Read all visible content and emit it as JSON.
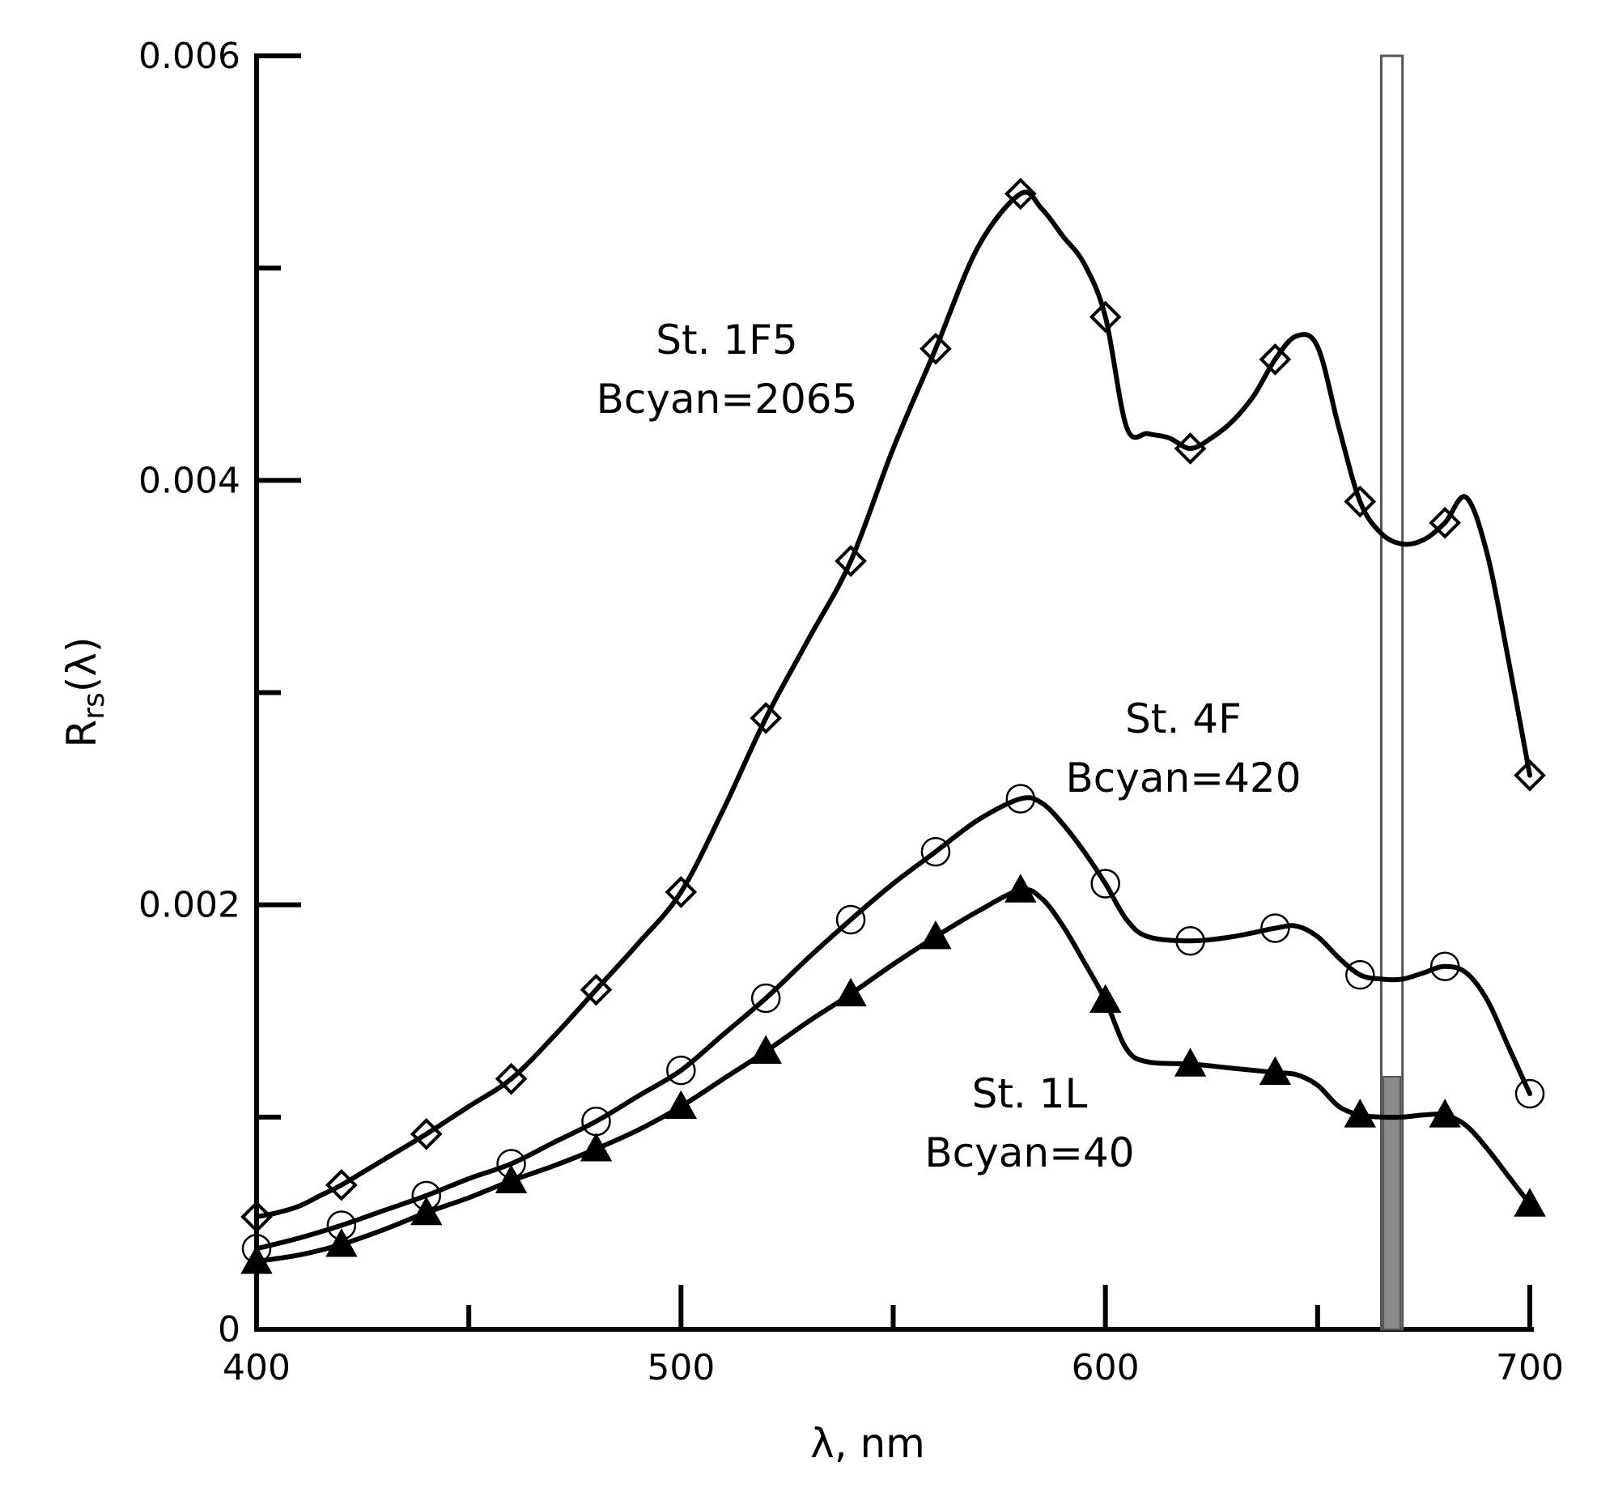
{
  "chart_data": {
    "type": "line",
    "title": "",
    "xlabel": "λ, nm",
    "ylabel": "Rrs(λ)",
    "ylabel_main": "R",
    "ylabel_sub": "rs",
    "ylabel_rest": "(λ)",
    "xlim": [
      400,
      700
    ],
    "ylim": [
      0,
      0.006
    ],
    "x_tick_labels": [
      {
        "value": 400,
        "label": "400"
      },
      {
        "value": 500,
        "label": "500"
      },
      {
        "value": 600,
        "label": "600"
      },
      {
        "value": 700,
        "label": "700"
      }
    ],
    "x_minor_ticks": [
      450,
      550,
      650
    ],
    "y_tick_labels": [
      {
        "value": 0,
        "label": "0"
      },
      {
        "value": 0.002,
        "label": "0.002"
      },
      {
        "value": 0.004,
        "label": "0.004"
      },
      {
        "value": 0.006,
        "label": "0.006"
      }
    ],
    "y_minor_ticks": [
      0.001,
      0.003,
      0.005
    ],
    "grid": false,
    "series": [
      {
        "name": "St. 1F5",
        "label_line1": "St. 1F5",
        "label_line2": "Bcyan=2065",
        "marker": "diamond",
        "x": [
          400,
          420,
          440,
          460,
          480,
          500,
          520,
          540,
          560,
          580,
          600,
          620,
          640,
          660,
          680,
          700
        ],
        "values": [
          0.00053,
          0.00068,
          0.00092,
          0.00118,
          0.0016,
          0.00206,
          0.00288,
          0.00362,
          0.00462,
          0.00535,
          0.00477,
          0.00415,
          0.00457,
          0.0039,
          0.0038,
          0.00261
        ],
        "curve_x": [
          400,
          405,
          410,
          415,
          420,
          430,
          440,
          450,
          460,
          470,
          480,
          490,
          500,
          510,
          520,
          530,
          540,
          550,
          560,
          570,
          580,
          585,
          590,
          595,
          600,
          605,
          610,
          615,
          620,
          625,
          630,
          635,
          640,
          645,
          650,
          655,
          660,
          665,
          670,
          675,
          680,
          685,
          690,
          695,
          700
        ],
        "curve_y": [
          0.00053,
          0.00055,
          0.00058,
          0.00063,
          0.00068,
          0.0008,
          0.00092,
          0.00105,
          0.00118,
          0.00138,
          0.0016,
          0.00182,
          0.00206,
          0.00245,
          0.00288,
          0.00325,
          0.00362,
          0.00415,
          0.00462,
          0.0051,
          0.00535,
          0.00528,
          0.00515,
          0.00502,
          0.00477,
          0.00425,
          0.00422,
          0.0042,
          0.00415,
          0.0042,
          0.00428,
          0.0044,
          0.00457,
          0.00468,
          0.00463,
          0.00425,
          0.0039,
          0.00375,
          0.0037,
          0.00372,
          0.0038,
          0.00392,
          0.00365,
          0.00315,
          0.00261
        ]
      },
      {
        "name": "St. 4F",
        "label_line1": "St. 4F",
        "label_line2": "Bcyan=420",
        "marker": "circle",
        "x": [
          400,
          420,
          440,
          460,
          480,
          500,
          520,
          540,
          560,
          580,
          600,
          620,
          640,
          660,
          680,
          700
        ],
        "values": [
          0.00038,
          0.00049,
          0.00063,
          0.00078,
          0.00098,
          0.00122,
          0.00156,
          0.00193,
          0.00225,
          0.0025,
          0.0021,
          0.00183,
          0.00189,
          0.00167,
          0.00171,
          0.00111
        ],
        "curve_x": [
          400,
          410,
          420,
          430,
          440,
          450,
          460,
          470,
          480,
          490,
          500,
          510,
          520,
          530,
          540,
          550,
          560,
          570,
          580,
          585,
          590,
          595,
          600,
          605,
          610,
          620,
          630,
          640,
          645,
          650,
          655,
          660,
          665,
          670,
          675,
          680,
          685,
          690,
          695,
          700
        ],
        "curve_y": [
          0.00038,
          0.00043,
          0.00049,
          0.00056,
          0.00063,
          0.00071,
          0.00078,
          0.00088,
          0.00098,
          0.0011,
          0.00122,
          0.00139,
          0.00156,
          0.00175,
          0.00193,
          0.0021,
          0.00225,
          0.0024,
          0.0025,
          0.00248,
          0.00238,
          0.00225,
          0.0021,
          0.00193,
          0.00185,
          0.00183,
          0.00185,
          0.00189,
          0.0019,
          0.00185,
          0.00175,
          0.00167,
          0.00165,
          0.00165,
          0.00168,
          0.00171,
          0.00168,
          0.00155,
          0.00133,
          0.00111
        ]
      },
      {
        "name": "St. 1L",
        "label_line1": "St. 1L",
        "label_line2": "Bcyan=40",
        "marker": "triangle",
        "x": [
          400,
          420,
          440,
          460,
          480,
          500,
          520,
          540,
          560,
          580,
          600,
          620,
          640,
          660,
          680,
          700
        ],
        "values": [
          0.00032,
          0.0004,
          0.00055,
          0.0007,
          0.00085,
          0.00105,
          0.00131,
          0.00158,
          0.00185,
          0.00207,
          0.00155,
          0.00125,
          0.00121,
          0.00101,
          0.00101,
          0.00059
        ],
        "curve_x": [
          400,
          410,
          420,
          430,
          440,
          450,
          460,
          470,
          480,
          490,
          500,
          510,
          520,
          530,
          540,
          550,
          560,
          570,
          580,
          585,
          590,
          595,
          600,
          605,
          610,
          620,
          630,
          640,
          645,
          650,
          655,
          660,
          665,
          670,
          675,
          680,
          685,
          690,
          695,
          700
        ],
        "curve_y": [
          0.00032,
          0.00035,
          0.0004,
          0.00047,
          0.00055,
          0.00062,
          0.0007,
          0.00077,
          0.00085,
          0.00094,
          0.00105,
          0.00118,
          0.00131,
          0.00145,
          0.00158,
          0.00172,
          0.00185,
          0.00197,
          0.00207,
          0.00203,
          0.0019,
          0.00173,
          0.00155,
          0.00132,
          0.00126,
          0.00125,
          0.00123,
          0.00121,
          0.0012,
          0.00115,
          0.00105,
          0.00101,
          0.001,
          0.001,
          0.00101,
          0.00101,
          0.00096,
          0.00085,
          0.00072,
          0.00059
        ]
      }
    ],
    "band": {
      "x_range": [
        665,
        670
      ],
      "filled_x_range": [
        665.5,
        669.5
      ],
      "filled_top": 0.00119
    },
    "colors": {
      "line": "#000000",
      "band_fill": "#8a8a8a",
      "band_outline": "#555555"
    }
  }
}
